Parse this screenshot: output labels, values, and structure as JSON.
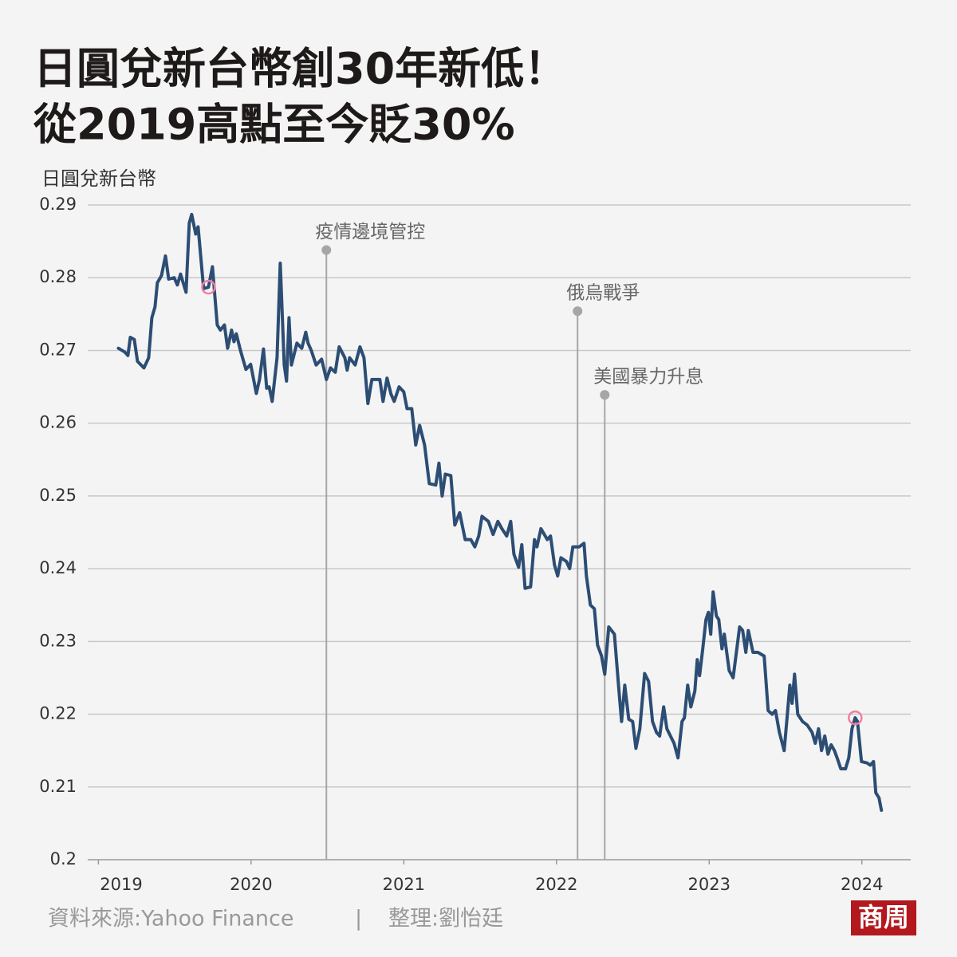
{
  "chart_data": {
    "type": "line",
    "title": [
      "日圓兌新台幣創30年新低！",
      "從2019高點至今貶30%"
    ],
    "y_label": "日圓兌新台幣",
    "color": "#2c4d74",
    "highlight_color": "#f07fa0",
    "highlight": [
      23,
      189
    ],
    "x": [
      2019.131,
      2019.172,
      2019.193,
      2019.209,
      2019.235,
      2019.256,
      2019.298,
      2019.329,
      2019.35,
      2019.371,
      2019.386,
      2019.413,
      2019.439,
      2019.46,
      2019.496,
      2019.517,
      2019.538,
      2019.574,
      2019.595,
      2019.611,
      2019.637,
      2019.653,
      2019.689,
      2019.721,
      2019.747,
      2019.778,
      2019.799,
      2019.825,
      2019.846,
      2019.872,
      2019.888,
      2019.903,
      2019.93,
      2019.966,
      2019.997,
      2020.034,
      2020.055,
      2020.081,
      2020.102,
      2020.118,
      2020.138,
      2020.17,
      2020.191,
      2020.217,
      2020.232,
      2020.248,
      2020.264,
      2020.3,
      2020.332,
      2020.358,
      2020.373,
      2020.394,
      2020.426,
      2020.462,
      2020.493,
      2020.52,
      2020.551,
      2020.577,
      2020.614,
      2020.629,
      2020.645,
      2020.681,
      2020.713,
      2020.739,
      2020.765,
      2020.791,
      2020.843,
      2020.864,
      2020.89,
      2020.916,
      2020.937,
      2020.969,
      2021.0,
      2021.021,
      2021.052,
      2021.078,
      2021.104,
      2021.136,
      2021.167,
      2021.209,
      2021.23,
      2021.251,
      2021.272,
      2021.308,
      2021.334,
      2021.366,
      2021.402,
      2021.439,
      2021.465,
      2021.491,
      2021.512,
      2021.554,
      2021.585,
      2021.616,
      2021.642,
      2021.674,
      2021.7,
      2021.721,
      2021.752,
      2021.773,
      2021.794,
      2021.83,
      2021.856,
      2021.872,
      2021.898,
      2021.94,
      2021.961,
      2021.987,
      2022.008,
      2022.029,
      2022.065,
      2022.086,
      2022.107,
      2022.149,
      2022.18,
      2022.196,
      2022.222,
      2022.248,
      2022.269,
      2022.295,
      2022.316,
      2022.342,
      2022.379,
      2022.41,
      2022.426,
      2022.447,
      2022.473,
      2022.499,
      2022.52,
      2022.546,
      2022.577,
      2022.603,
      2022.629,
      2022.655,
      2022.676,
      2022.702,
      2022.723,
      2022.77,
      2022.796,
      2022.822,
      2022.838,
      2022.859,
      2022.88,
      2022.906,
      2022.922,
      2022.937,
      2022.958,
      2022.979,
      2022.995,
      2023.01,
      2023.026,
      2023.047,
      2023.063,
      2023.084,
      2023.099,
      2023.131,
      2023.157,
      2023.199,
      2023.219,
      2023.24,
      2023.256,
      2023.287,
      2023.319,
      2023.36,
      2023.386,
      2023.413,
      2023.434,
      2023.46,
      2023.491,
      2023.512,
      2023.528,
      2023.543,
      2023.559,
      2023.58,
      2023.611,
      2023.642,
      2023.674,
      2023.695,
      2023.716,
      2023.736,
      2023.757,
      2023.778,
      2023.799,
      2023.82,
      2023.841,
      2023.862,
      2023.893,
      2023.914,
      2023.935,
      2023.956,
      2023.971,
      2023.997,
      2024.034,
      2024.055,
      2024.076,
      2024.091,
      2024.112,
      2024.128
    ],
    "values": [
      0.2703,
      0.2698,
      0.2693,
      0.2718,
      0.2715,
      0.2685,
      0.2676,
      0.269,
      0.2745,
      0.276,
      0.2793,
      0.2803,
      0.283,
      0.2798,
      0.28,
      0.279,
      0.2805,
      0.278,
      0.2875,
      0.2887,
      0.286,
      0.287,
      0.2785,
      0.2787,
      0.2815,
      0.2735,
      0.2728,
      0.2735,
      0.2703,
      0.2728,
      0.2712,
      0.2723,
      0.27,
      0.2674,
      0.2681,
      0.2641,
      0.266,
      0.2702,
      0.2648,
      0.265,
      0.263,
      0.269,
      0.282,
      0.268,
      0.2658,
      0.2745,
      0.268,
      0.271,
      0.2703,
      0.2725,
      0.271,
      0.27,
      0.268,
      0.2688,
      0.266,
      0.2676,
      0.267,
      0.2705,
      0.269,
      0.2673,
      0.269,
      0.268,
      0.2705,
      0.269,
      0.2627,
      0.266,
      0.266,
      0.263,
      0.2662,
      0.264,
      0.263,
      0.265,
      0.2643,
      0.262,
      0.262,
      0.257,
      0.2597,
      0.257,
      0.2517,
      0.2515,
      0.2545,
      0.25,
      0.253,
      0.2528,
      0.246,
      0.2477,
      0.244,
      0.244,
      0.243,
      0.2445,
      0.2472,
      0.2465,
      0.2447,
      0.2465,
      0.2455,
      0.2445,
      0.2465,
      0.242,
      0.2402,
      0.2433,
      0.2373,
      0.2375,
      0.244,
      0.243,
      0.2455,
      0.244,
      0.2445,
      0.2405,
      0.239,
      0.2415,
      0.241,
      0.24,
      0.243,
      0.243,
      0.2435,
      0.239,
      0.235,
      0.2345,
      0.2295,
      0.228,
      0.2255,
      0.232,
      0.231,
      0.223,
      0.219,
      0.224,
      0.2193,
      0.219,
      0.2153,
      0.218,
      0.2256,
      0.2245,
      0.219,
      0.2175,
      0.217,
      0.221,
      0.218,
      0.216,
      0.214,
      0.219,
      0.2195,
      0.224,
      0.221,
      0.2232,
      0.2275,
      0.2253,
      0.229,
      0.233,
      0.234,
      0.231,
      0.2368,
      0.2335,
      0.233,
      0.229,
      0.231,
      0.226,
      0.225,
      0.232,
      0.2315,
      0.2285,
      0.2315,
      0.2285,
      0.2285,
      0.228,
      0.2205,
      0.22,
      0.2205,
      0.2175,
      0.215,
      0.22,
      0.224,
      0.2215,
      0.2255,
      0.22,
      0.219,
      0.2185,
      0.2175,
      0.216,
      0.218,
      0.215,
      0.217,
      0.2145,
      0.2158,
      0.215,
      0.2138,
      0.2125,
      0.2125,
      0.214,
      0.218,
      0.2195,
      0.219,
      0.2135,
      0.2133,
      0.213,
      0.2135,
      0.2092,
      0.2085,
      0.2068
    ],
    "xlim": [
      2018.93,
      2024.32
    ],
    "xticks": [
      2019,
      2020,
      2021,
      2022,
      2023,
      2024
    ],
    "ylim": [
      0.2,
      0.29
    ],
    "yticks": [
      0.29,
      0.28,
      0.27,
      0.26,
      0.25,
      0.24,
      0.23,
      0.22,
      0.21,
      0.2
    ],
    "grid": true,
    "annotations": [
      {
        "text": "疫情邊境管控",
        "x": 2020.493,
        "y": 0.2838
      },
      {
        "text": "俄烏戰爭",
        "x": 2022.138,
        "y": 0.2754
      },
      {
        "text": "美國暴力升息",
        "x": 2022.316,
        "y": 0.2639
      }
    ],
    "source": "資料來源:Yahoo Finance",
    "separator": "|",
    "credit": "整理:劉怡廷",
    "logo": "商周"
  }
}
